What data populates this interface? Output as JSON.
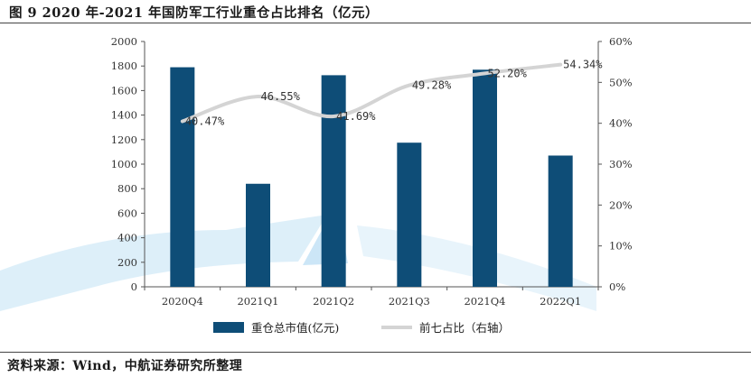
{
  "title": "图 9 2020 年-2021 年国防军工行业重仓占比排名（亿元）",
  "source": "资料来源：Wind，中航证券研究所整理",
  "chart_data": {
    "type": "bar",
    "categories": [
      "2020Q4",
      "2021Q1",
      "2021Q2",
      "2021Q3",
      "2021Q4",
      "2022Q1"
    ],
    "series": [
      {
        "name": "重仓总市值(亿元)",
        "type": "bar",
        "axis": "left",
        "color": "#0e4d77",
        "values": [
          1790,
          840,
          1725,
          1175,
          1770,
          1070
        ]
      },
      {
        "name": "前七占比（右轴）",
        "type": "line",
        "axis": "right",
        "color": "#d4d4d4",
        "values": [
          40.47,
          46.55,
          41.69,
          49.28,
          52.2,
          54.34
        ],
        "labels": [
          "40.47%",
          "46.55%",
          "41.69%",
          "49.28%",
          "52.20%",
          "54.34%"
        ]
      }
    ],
    "y_left": {
      "ylim": [
        0,
        2000
      ],
      "ticks": [
        "0",
        "200",
        "400",
        "600",
        "800",
        "1000",
        "1200",
        "1400",
        "1600",
        "1800",
        "2000"
      ]
    },
    "y_right": {
      "ylim": [
        0,
        60
      ],
      "ticks": [
        "0%",
        "10%",
        "20%",
        "30%",
        "40%",
        "50%",
        "60%"
      ]
    },
    "legend_position": "bottom",
    "grid": false
  }
}
